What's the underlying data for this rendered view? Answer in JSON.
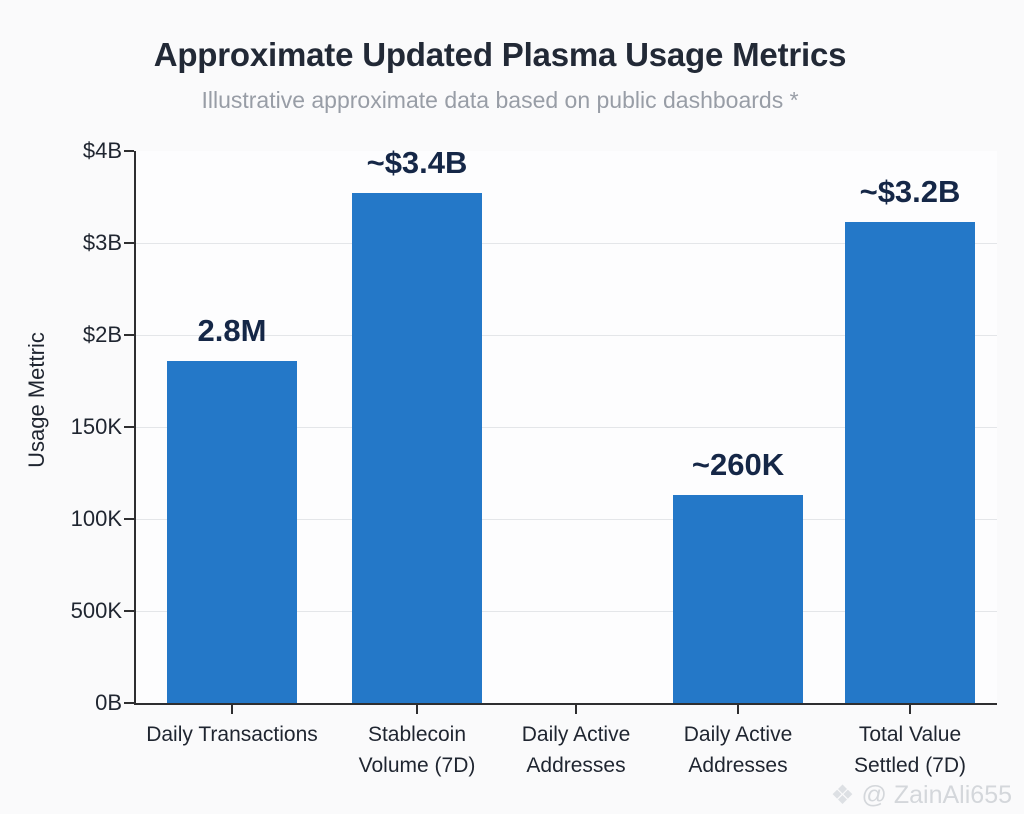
{
  "header": {
    "title": "Approximate Updated Plasma Usage Metrics",
    "subtitle": "Illustrative approximate data based on public dashboards *"
  },
  "watermark": {
    "icon": "diamond-icon",
    "handle": "@ ZainAli655"
  },
  "colors": {
    "background": "#fafafb",
    "bar": "#2478c8",
    "title": "#222936",
    "subtitle": "#989da6",
    "value_label": "#152747",
    "axis_text": "#1f2530",
    "gridline": "#e4e6e9",
    "axis_line": "#2e2e30",
    "watermark": "#d4d7db"
  },
  "chart_data": {
    "type": "bar",
    "title": "Approximate Updated Plasma Usage Metrics",
    "subtitle": "Illustrative approximate data based on public dashboards *",
    "ylabel": "Usage Mettric",
    "xlabel": "",
    "yticks": [
      "$4B",
      "$3B",
      "$2B",
      "150K",
      "100K",
      "500K",
      "0B"
    ],
    "grid": true,
    "legend": false,
    "categories": [
      [
        "Daily Transactions"
      ],
      [
        "Stablecoin",
        "Volume (7D)"
      ],
      [
        "Daily Active",
        "Addresses"
      ],
      [
        "Daily Active",
        "Addresses"
      ],
      [
        "Total Value",
        "Settled (7D)"
      ]
    ],
    "bars": [
      {
        "value_label": "2.8M",
        "height_frac": 0.62
      },
      {
        "value_label": "~$3.4B",
        "height_frac": 0.924
      },
      {
        "value_label": "",
        "height_frac": 0
      },
      {
        "value_label": "~260K",
        "height_frac": 0.377
      },
      {
        "value_label": "~$3.2B",
        "height_frac": 0.871
      }
    ],
    "bar_color": "#2478c8"
  }
}
